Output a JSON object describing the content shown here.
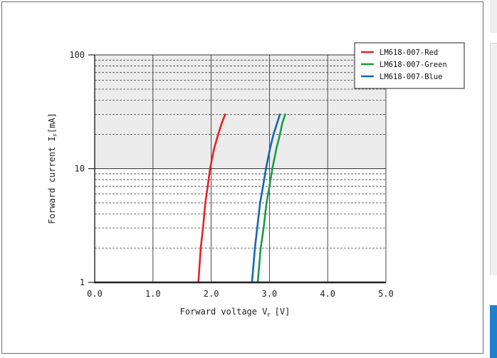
{
  "chart_data": {
    "type": "line",
    "title": "",
    "xlabel": "Forward voltage V",
    "xlabel_unit": "[V]",
    "xlabel_subscript": "F",
    "ylabel": "Forward current I",
    "ylabel_subscript": "F",
    "ylabel_unit": "[mA]",
    "xlim": [
      0,
      5
    ],
    "ylim": [
      1,
      100
    ],
    "y_scale": "log",
    "grid": true,
    "shaded_band": [
      10,
      100
    ],
    "legend_position": "top-right",
    "x_ticks": [
      "0.0",
      "1.0",
      "2.0",
      "3.0",
      "4.0",
      "5.0"
    ],
    "x_tick_values": [
      0,
      1,
      2,
      3,
      4,
      5
    ],
    "y_ticks": [
      "1",
      "10",
      "100"
    ],
    "y_tick_values": [
      1,
      10,
      100
    ],
    "series": [
      {
        "name": "LM618-007-Red",
        "color": "#e8202a",
        "x": [
          1.78,
          1.82,
          1.86,
          1.9,
          1.94,
          1.98,
          2.05,
          2.12,
          2.18,
          2.24
        ],
        "y": [
          1,
          2,
          3,
          5,
          7,
          10,
          15,
          20,
          25,
          30
        ]
      },
      {
        "name": "LM618-007-Green",
        "color": "#1a9a48",
        "x": [
          2.8,
          2.85,
          2.9,
          2.95,
          3.0,
          3.05,
          3.12,
          3.18,
          3.22,
          3.27
        ],
        "y": [
          1,
          2,
          3,
          5,
          7,
          10,
          15,
          20,
          25,
          30
        ]
      },
      {
        "name": "LM618-007-Blue",
        "color": "#1666b0",
        "x": [
          2.7,
          2.75,
          2.79,
          2.84,
          2.89,
          2.94,
          3.01,
          3.07,
          3.13,
          3.18
        ],
        "y": [
          1,
          2,
          3,
          5,
          7,
          10,
          15,
          20,
          25,
          30
        ]
      }
    ]
  }
}
